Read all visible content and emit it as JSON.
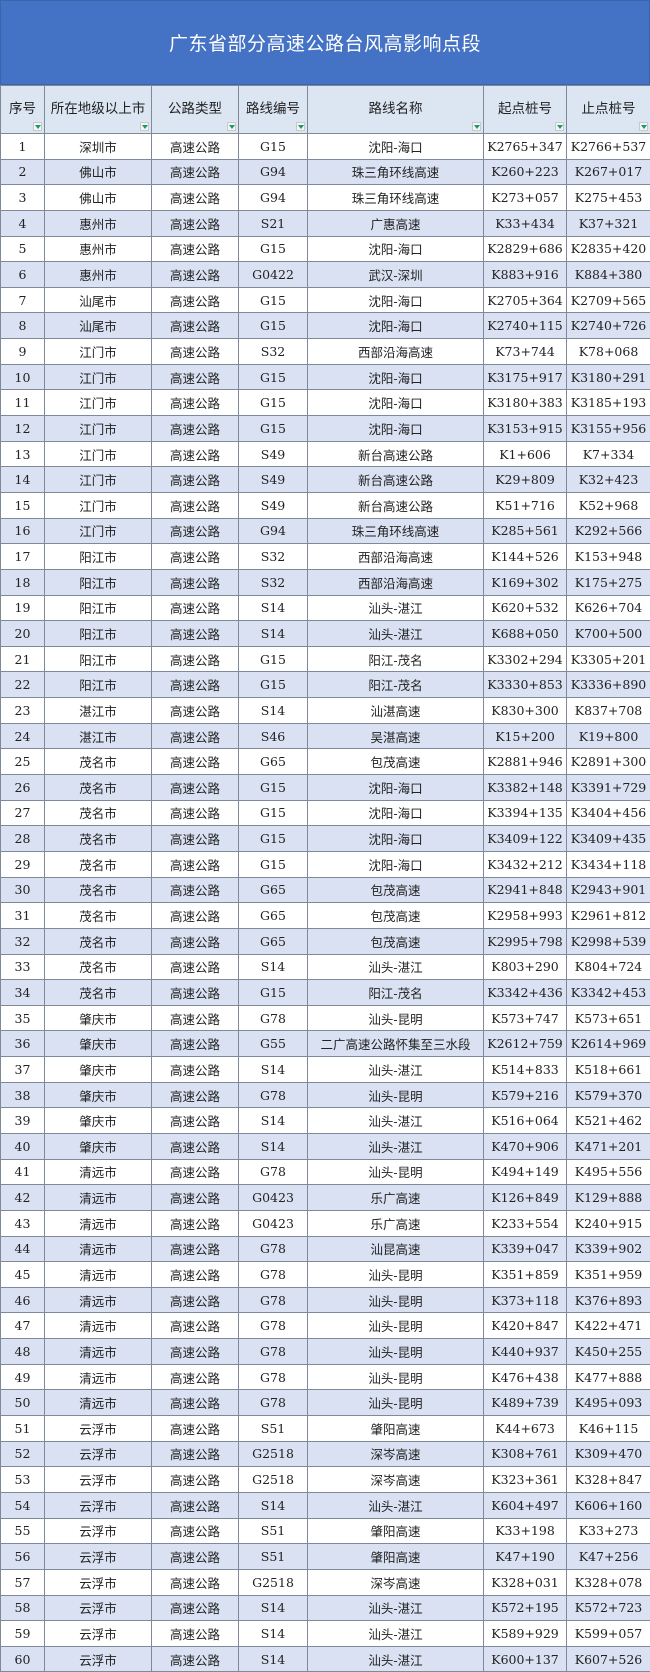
{
  "title": "广东省部分高速公路台风高影响点段",
  "colors": {
    "title_bg": "#4472C4",
    "header_bg": "#dce6f2",
    "alt_row_bg": "#d9e1f2",
    "filter_arrow": "#1a9a6c"
  },
  "headers": [
    "序号",
    "所在地级以上市",
    "公路类型",
    "路线编号",
    "路线名称",
    "起点桩号",
    "止点桩号"
  ],
  "rows": [
    [
      "1",
      "深圳市",
      "高速公路",
      "G15",
      "沈阳-海口",
      "K2765+347",
      "K2766+537"
    ],
    [
      "2",
      "佛山市",
      "高速公路",
      "G94",
      "珠三角环线高速",
      "K260+223",
      "K267+017"
    ],
    [
      "3",
      "佛山市",
      "高速公路",
      "G94",
      "珠三角环线高速",
      "K273+057",
      "K275+453"
    ],
    [
      "4",
      "惠州市",
      "高速公路",
      "S21",
      "广惠高速",
      "K33+434",
      "K37+321"
    ],
    [
      "5",
      "惠州市",
      "高速公路",
      "G15",
      "沈阳-海口",
      "K2829+686",
      "K2835+420"
    ],
    [
      "6",
      "惠州市",
      "高速公路",
      "G0422",
      "武汉-深圳",
      "K883+916",
      "K884+380"
    ],
    [
      "7",
      "汕尾市",
      "高速公路",
      "G15",
      "沈阳-海口",
      "K2705+364",
      "K2709+565"
    ],
    [
      "8",
      "汕尾市",
      "高速公路",
      "G15",
      "沈阳-海口",
      "K2740+115",
      "K2740+726"
    ],
    [
      "9",
      "江门市",
      "高速公路",
      "S32",
      "西部沿海高速",
      "K73+744",
      "K78+068"
    ],
    [
      "10",
      "江门市",
      "高速公路",
      "G15",
      "沈阳-海口",
      "K3175+917",
      "K3180+291"
    ],
    [
      "11",
      "江门市",
      "高速公路",
      "G15",
      "沈阳-海口",
      "K3180+383",
      "K3185+193"
    ],
    [
      "12",
      "江门市",
      "高速公路",
      "G15",
      "沈阳-海口",
      "K3153+915",
      "K3155+956"
    ],
    [
      "13",
      "江门市",
      "高速公路",
      "S49",
      "新台高速公路",
      "K1+606",
      "K7+334"
    ],
    [
      "14",
      "江门市",
      "高速公路",
      "S49",
      "新台高速公路",
      "K29+809",
      "K32+423"
    ],
    [
      "15",
      "江门市",
      "高速公路",
      "S49",
      "新台高速公路",
      "K51+716",
      "K52+968"
    ],
    [
      "16",
      "江门市",
      "高速公路",
      "G94",
      "珠三角环线高速",
      "K285+561",
      "K292+566"
    ],
    [
      "17",
      "阳江市",
      "高速公路",
      "S32",
      "西部沿海高速",
      "K144+526",
      "K153+948"
    ],
    [
      "18",
      "阳江市",
      "高速公路",
      "S32",
      "西部沿海高速",
      "K169+302",
      "K175+275"
    ],
    [
      "19",
      "阳江市",
      "高速公路",
      "S14",
      "汕头-湛江",
      "K620+532",
      "K626+704"
    ],
    [
      "20",
      "阳江市",
      "高速公路",
      "S14",
      "汕头-湛江",
      "K688+050",
      "K700+500"
    ],
    [
      "21",
      "阳江市",
      "高速公路",
      "G15",
      "阳江-茂名",
      "K3302+294",
      "K3305+201"
    ],
    [
      "22",
      "阳江市",
      "高速公路",
      "G15",
      "阳江-茂名",
      "K3330+853",
      "K3336+890"
    ],
    [
      "23",
      "湛江市",
      "高速公路",
      "S14",
      "汕湛高速",
      "K830+300",
      "K837+708"
    ],
    [
      "24",
      "湛江市",
      "高速公路",
      "S46",
      "吴湛高速",
      "K15+200",
      "K19+800"
    ],
    [
      "25",
      "茂名市",
      "高速公路",
      "G65",
      "包茂高速",
      "K2881+946",
      "K2891+300"
    ],
    [
      "26",
      "茂名市",
      "高速公路",
      "G15",
      "沈阳-海口",
      "K3382+148",
      "K3391+729"
    ],
    [
      "27",
      "茂名市",
      "高速公路",
      "G15",
      "沈阳-海口",
      "K3394+135",
      "K3404+456"
    ],
    [
      "28",
      "茂名市",
      "高速公路",
      "G15",
      "沈阳-海口",
      "K3409+122",
      "K3409+435"
    ],
    [
      "29",
      "茂名市",
      "高速公路",
      "G15",
      "沈阳-海口",
      "K3432+212",
      "K3434+118"
    ],
    [
      "30",
      "茂名市",
      "高速公路",
      "G65",
      "包茂高速",
      "K2941+848",
      "K2943+901"
    ],
    [
      "31",
      "茂名市",
      "高速公路",
      "G65",
      "包茂高速",
      "K2958+993",
      "K2961+812"
    ],
    [
      "32",
      "茂名市",
      "高速公路",
      "G65",
      "包茂高速",
      "K2995+798",
      "K2998+539"
    ],
    [
      "33",
      "茂名市",
      "高速公路",
      "S14",
      "汕头-湛江",
      "K803+290",
      "K804+724"
    ],
    [
      "34",
      "茂名市",
      "高速公路",
      "G15",
      "阳江-茂名",
      "K3342+436",
      "K3342+453"
    ],
    [
      "35",
      "肇庆市",
      "高速公路",
      "G78",
      "汕头-昆明",
      "K573+747",
      "K573+651"
    ],
    [
      "36",
      "肇庆市",
      "高速公路",
      "G55",
      "二广高速公路怀集至三水段",
      "K2612+759",
      "K2614+969"
    ],
    [
      "37",
      "肇庆市",
      "高速公路",
      "S14",
      "汕头-湛江",
      "K514+833",
      "K518+661"
    ],
    [
      "38",
      "肇庆市",
      "高速公路",
      "G78",
      "汕头-昆明",
      "K579+216",
      "K579+370"
    ],
    [
      "39",
      "肇庆市",
      "高速公路",
      "S14",
      "汕头-湛江",
      "K516+064",
      "K521+462"
    ],
    [
      "40",
      "肇庆市",
      "高速公路",
      "S14",
      "汕头-湛江",
      "K470+906",
      "K471+201"
    ],
    [
      "41",
      "清远市",
      "高速公路",
      "G78",
      "汕头-昆明",
      "K494+149",
      "K495+556"
    ],
    [
      "42",
      "清远市",
      "高速公路",
      "G0423",
      "乐广高速",
      "K126+849",
      "K129+888"
    ],
    [
      "43",
      "清远市",
      "高速公路",
      "G0423",
      "乐广高速",
      "K233+554",
      "K240+915"
    ],
    [
      "44",
      "清远市",
      "高速公路",
      "G78",
      "汕昆高速",
      "K339+047",
      "K339+902"
    ],
    [
      "45",
      "清远市",
      "高速公路",
      "G78",
      "汕头-昆明",
      "K351+859",
      "K351+959"
    ],
    [
      "46",
      "清远市",
      "高速公路",
      "G78",
      "汕头-昆明",
      "K373+118",
      "K376+893"
    ],
    [
      "47",
      "清远市",
      "高速公路",
      "G78",
      "汕头-昆明",
      "K420+847",
      "K422+471"
    ],
    [
      "48",
      "清远市",
      "高速公路",
      "G78",
      "汕头-昆明",
      "K440+937",
      "K450+255"
    ],
    [
      "49",
      "清远市",
      "高速公路",
      "G78",
      "汕头-昆明",
      "K476+438",
      "K477+888"
    ],
    [
      "50",
      "清远市",
      "高速公路",
      "G78",
      "汕头-昆明",
      "K489+739",
      "K495+093"
    ],
    [
      "51",
      "云浮市",
      "高速公路",
      "S51",
      "肇阳高速",
      "K44+673",
      "K46+115"
    ],
    [
      "52",
      "云浮市",
      "高速公路",
      "G2518",
      "深岑高速",
      "K308+761",
      "K309+470"
    ],
    [
      "53",
      "云浮市",
      "高速公路",
      "G2518",
      "深岑高速",
      "K323+361",
      "K328+847"
    ],
    [
      "54",
      "云浮市",
      "高速公路",
      "S14",
      "汕头-湛江",
      "K604+497",
      "K606+160"
    ],
    [
      "55",
      "云浮市",
      "高速公路",
      "S51",
      "肇阳高速",
      "K33+198",
      "K33+273"
    ],
    [
      "56",
      "云浮市",
      "高速公路",
      "S51",
      "肇阳高速",
      "K47+190",
      "K47+256"
    ],
    [
      "57",
      "云浮市",
      "高速公路",
      "G2518",
      "深岑高速",
      "K328+031",
      "K328+078"
    ],
    [
      "58",
      "云浮市",
      "高速公路",
      "S14",
      "汕头-湛江",
      "K572+195",
      "K572+723"
    ],
    [
      "59",
      "云浮市",
      "高速公路",
      "S14",
      "汕头-湛江",
      "K589+929",
      "K599+057"
    ],
    [
      "60",
      "云浮市",
      "高速公路",
      "S14",
      "汕头-湛江",
      "K600+137",
      "K607+526"
    ]
  ]
}
